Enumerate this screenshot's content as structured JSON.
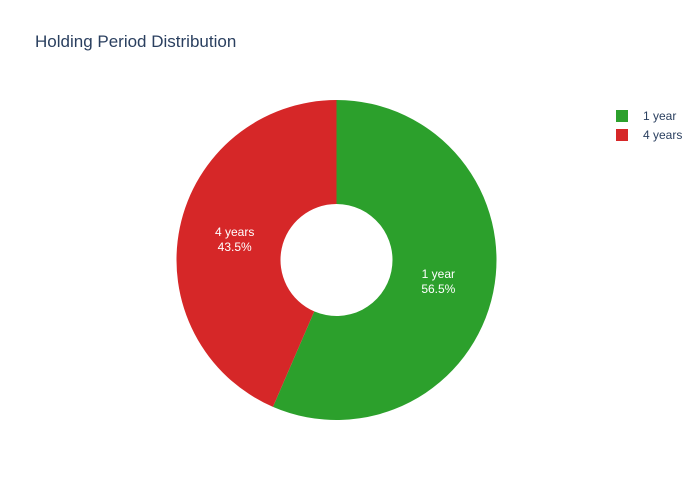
{
  "chart_data": {
    "type": "pie",
    "hole": true,
    "title": "Holding Period Distribution",
    "slices": [
      {
        "label": "1 year",
        "value": 56.5,
        "percent_label": "56.5%",
        "color": "#2ca02c"
      },
      {
        "label": "4 years",
        "value": 43.5,
        "percent_label": "43.5%",
        "color": "#d62728"
      }
    ],
    "legend": {
      "placement": "top-right",
      "entries": [
        {
          "label": "1 year",
          "color": "#2ca02c"
        },
        {
          "label": "4 years",
          "color": "#d62728"
        }
      ]
    }
  }
}
